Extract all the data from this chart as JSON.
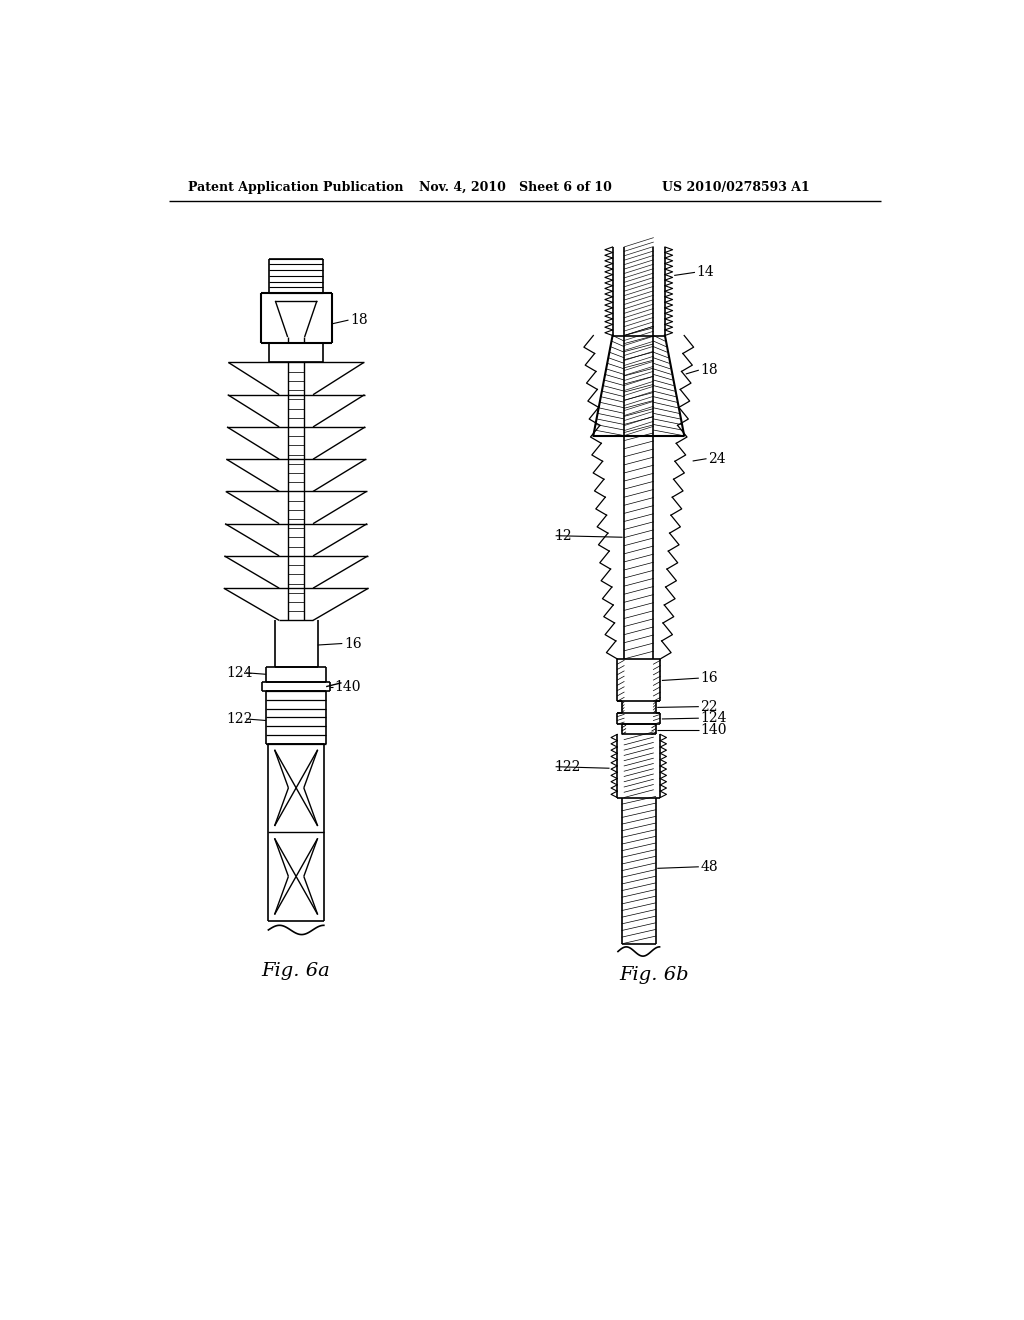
{
  "title_left": "Patent Application Publication",
  "title_center": "Nov. 4, 2010   Sheet 6 of 10",
  "title_right": "US 2010/0278593 A1",
  "fig_a_label": "Fig. 6a",
  "fig_b_label": "Fig. 6b",
  "bg_color": "#ffffff",
  "line_color": "#000000"
}
